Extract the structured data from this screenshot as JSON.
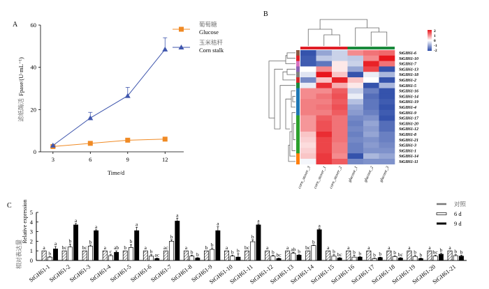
{
  "panels": {
    "a": "A",
    "b": "B",
    "c": "C"
  },
  "chart_data": [
    {
      "type": "line",
      "panel": "A",
      "xlabel": "Time/d",
      "ylabel_cn": "滤纸酶活",
      "ylabel_en": "Fpase/(U·mL⁻¹)",
      "x": [
        3,
        6,
        9,
        12
      ],
      "xticks": [
        "3",
        "6",
        "9",
        "12"
      ],
      "ylim": [
        0,
        60
      ],
      "yticks": [
        "0",
        "20",
        "40",
        "60"
      ],
      "legend_position": "top-right",
      "series": [
        {
          "name": "Glucose",
          "name_cn": "葡萄糖",
          "marker": "square",
          "color": "#f08a24",
          "values": [
            2.5,
            4.0,
            5.5,
            6.0
          ],
          "errors": [
            0.5,
            0.5,
            1.0,
            0.8
          ]
        },
        {
          "name": "Corn stalk",
          "name_cn": "玉米秸秆",
          "marker": "triangle",
          "color": "#3f56ad",
          "values": [
            3.0,
            16.0,
            26.5,
            48.5
          ],
          "errors": [
            0.5,
            2.7,
            4.0,
            5.5
          ]
        }
      ]
    },
    {
      "type": "heatmap",
      "panel": "B",
      "columns": [
        "corn_stover_3",
        "corn_stover_1",
        "corn_stover_2",
        "glucose_1",
        "glucose_2",
        "glucose_3"
      ],
      "column_groups": [
        {
          "name": "corn_stover",
          "color": "#e01e26",
          "count": 3
        },
        {
          "name": "glucose",
          "color": "#1a8a3c",
          "count": 3
        }
      ],
      "rows": [
        "StGH61-6",
        "StGH61-10",
        "StGH61-7",
        "StGH61-13",
        "StGH61-18",
        "StGH61-2",
        "StGH61-5",
        "StGH61-16",
        "StGH61-14",
        "StGH61-19",
        "StGH61-4",
        "StGH61-9",
        "StGH61-17",
        "StGH61-20",
        "StGH61-12",
        "StGH61-8",
        "StGH61-21",
        "StGH61-3",
        "StGH61-1",
        "StGH61-14",
        "StGH61-11"
      ],
      "row_group_colors": [
        "#8c5a44",
        "#e01e26",
        "#d873c0",
        "#8b63b5",
        "#7f7f7f",
        "#d62728",
        "#1a8a3c",
        "#1f77b4",
        "#1f77b4",
        "#1f77b4",
        "#1f77b4",
        "#1f77b4",
        "#2ca02c",
        "#2ca02c",
        "#2ca02c",
        "#2ca02c",
        "#2ca02c",
        "#2ca02c",
        "#2ca02c",
        "#ff7f0e",
        "#ff7f0e"
      ],
      "values": [
        [
          -1.9,
          -1.0,
          -0.5,
          1.0,
          1.2,
          1.3
        ],
        [
          -1.8,
          -0.6,
          -0.5,
          -0.6,
          1.0,
          2.0
        ],
        [
          -1.8,
          -1.5,
          0.2,
          -0.5,
          1.9,
          1.2
        ],
        [
          0.0,
          1.0,
          0.2,
          -1.0,
          1.6,
          -1.9
        ],
        [
          -0.3,
          2.0,
          0.5,
          -1.9,
          -0.2,
          -0.8
        ],
        [
          -1.3,
          0.5,
          1.9,
          0.5,
          0.0,
          -1.9
        ],
        [
          -0.2,
          1.8,
          0.7,
          0.2,
          -1.9,
          -0.8
        ],
        [
          1.0,
          1.0,
          1.4,
          -0.5,
          -1.4,
          -1.9
        ],
        [
          1.0,
          1.2,
          1.5,
          -0.2,
          -1.6,
          -1.9
        ],
        [
          1.1,
          1.1,
          1.4,
          -0.7,
          -1.5,
          -1.8
        ],
        [
          1.1,
          1.2,
          1.5,
          -1.0,
          -1.5,
          -1.9
        ],
        [
          1.1,
          1.1,
          1.4,
          -1.1,
          -1.4,
          -1.8
        ],
        [
          0.9,
          1.4,
          1.2,
          -1.3,
          -1.2,
          -1.9
        ],
        [
          0.9,
          1.5,
          1.2,
          -1.4,
          -1.0,
          -1.6
        ],
        [
          0.9,
          1.5,
          1.2,
          -1.3,
          -1.1,
          -1.6
        ],
        [
          0.5,
          1.8,
          1.2,
          -1.4,
          -1.0,
          -1.4
        ],
        [
          0.4,
          1.6,
          1.2,
          -1.3,
          -1.2,
          -1.4
        ],
        [
          0.3,
          1.6,
          1.1,
          -1.4,
          -1.1,
          -1.3
        ],
        [
          0.4,
          1.6,
          1.1,
          -1.4,
          -1.2,
          -1.2
        ],
        [
          0.5,
          1.7,
          1.0,
          -1.9,
          -0.8,
          -1.0
        ],
        [
          -0.1,
          1.7,
          1.4,
          -1.3,
          -1.2,
          -1.2
        ]
      ],
      "color_scale": {
        "min": -2,
        "max": 2,
        "low": "#2a4aa8",
        "mid": "#ffffff",
        "high": "#e8161c"
      },
      "scale_ticks": [
        "2",
        "1",
        "0",
        "-1",
        "-2"
      ],
      "row_dendrogram": true,
      "column_dendrogram": true
    },
    {
      "type": "bar",
      "panel": "C",
      "ylabel_cn": "相对表达量",
      "ylabel_en": "Relative expression",
      "ylim": [
        0,
        5
      ],
      "yticks": [
        "0",
        "1",
        "2",
        "3",
        "4",
        "5"
      ],
      "legend_position": "top-right",
      "categories": [
        "StGH61-1",
        "StGH61-2",
        "StGH61-3",
        "StGH61-4",
        "StGH61-5",
        "StGH61-6",
        "StGH61-7",
        "StGH61-8",
        "StGH61-9",
        "StGH61-10",
        "StGH61-11",
        "StGH61-12",
        "StGH61-13",
        "StGH61-14",
        "StGH61-15",
        "StGH61-16",
        "StGH61-17",
        "StGH61-18",
        "StGH61-19",
        "StGH61-20",
        "StGH61-21"
      ],
      "series": [
        {
          "name": "对照",
          "style": "hatched",
          "values": [
            1,
            1,
            1,
            1,
            1,
            1,
            1,
            1,
            1,
            1,
            1,
            1,
            1,
            1,
            1,
            1,
            1,
            1,
            1,
            1,
            1
          ],
          "errors": [
            0,
            0,
            0,
            0,
            0,
            0,
            0,
            0,
            0,
            0,
            0,
            0,
            0,
            0,
            0,
            0,
            0,
            0,
            0,
            0,
            0
          ],
          "letters": [
            "a",
            "bc",
            "bc",
            "a",
            "b",
            "a",
            "ac",
            "a",
            "b",
            "a",
            "bc",
            "a",
            "a",
            "bc",
            "a",
            "a",
            "a",
            "a",
            "a",
            "a",
            "a"
          ]
        },
        {
          "name": "6 d",
          "style": "white",
          "values": [
            0.35,
            1.4,
            1.5,
            0.5,
            1.35,
            0.45,
            2.0,
            0.45,
            1.15,
            0.45,
            1.95,
            0.45,
            0.75,
            1.55,
            0.45,
            0.35,
            0.2,
            0.4,
            0.4,
            0.45,
            0.5
          ],
          "errors": [
            0.05,
            0.3,
            0.1,
            0.1,
            0.3,
            0.15,
            0.15,
            0.1,
            0.15,
            0.1,
            0.2,
            0.1,
            0.1,
            0.05,
            0.15,
            0.2,
            0.05,
            0.1,
            0.15,
            0.1,
            0.1
          ],
          "letters": [
            "b",
            "b",
            "b",
            "c",
            "b",
            "b",
            "b",
            "b",
            "b",
            "b",
            "b",
            "b",
            "ab",
            "b",
            "b",
            "b",
            "b",
            "b",
            "b",
            "bc",
            "b"
          ]
        },
        {
          "name": "9 d",
          "style": "black",
          "values": [
            1.2,
            3.7,
            3.1,
            0.85,
            3.1,
            0.2,
            4.1,
            0.25,
            3.1,
            0.35,
            3.7,
            0.2,
            0.55,
            3.2,
            0.25,
            0.35,
            0.3,
            0.25,
            0.2,
            0.65,
            0.45
          ],
          "errors": [
            0.25,
            0.15,
            0.1,
            0.15,
            0.35,
            0.05,
            0.3,
            0.05,
            0.4,
            0.35,
            0.1,
            0.05,
            0.05,
            0.1,
            0.05,
            0.05,
            0.05,
            0.05,
            0.05,
            0.1,
            0.1
          ],
          "letters": [
            "a",
            "a",
            "a",
            "ab",
            "a",
            "ac",
            "a",
            "b",
            "a",
            "b",
            "a",
            "bc",
            "b",
            "a",
            "bc",
            "b",
            "b",
            "bc",
            "b",
            "b",
            "b"
          ]
        }
      ]
    }
  ]
}
